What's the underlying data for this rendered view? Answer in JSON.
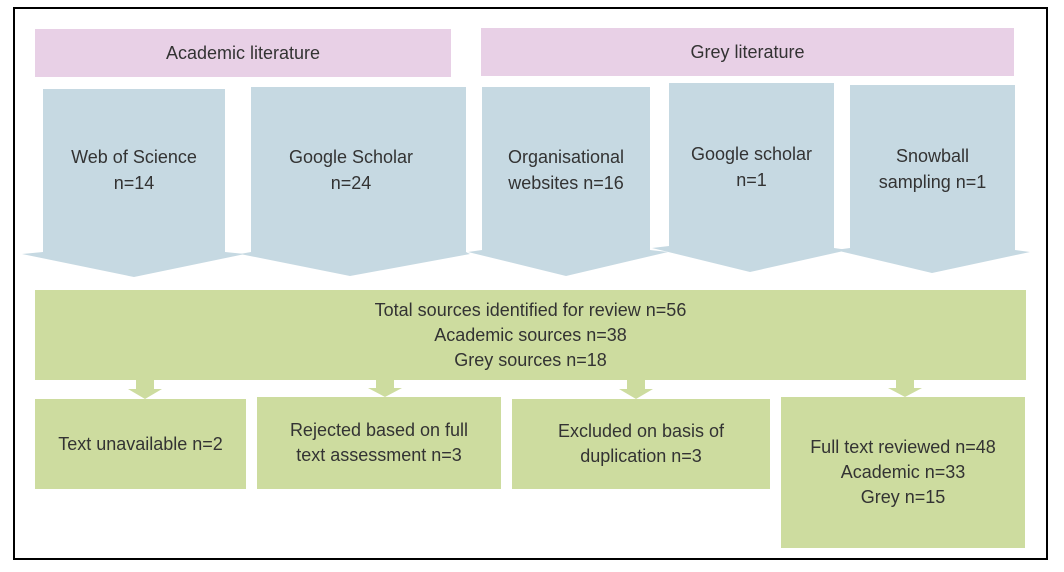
{
  "colors": {
    "header": "#e8d0e6",
    "source": "#c6d9e2",
    "process": "#cddc9f",
    "text": "#333333"
  },
  "headers": {
    "academic": "Academic literature",
    "grey": "Grey literature"
  },
  "sources": [
    {
      "lines": [
        "Web of Science",
        "n=14"
      ]
    },
    {
      "lines": [
        "Google Scholar",
        "n=24"
      ]
    },
    {
      "lines": [
        "Organisational",
        "websites n=16"
      ]
    },
    {
      "lines": [
        "Google scholar",
        "n=1"
      ]
    },
    {
      "lines": [
        "Snowball",
        "sampling n=1"
      ]
    }
  ],
  "total": {
    "lines": [
      "Total sources identified for review n=56",
      "Academic sources n=38",
      "Grey sources n=18"
    ]
  },
  "outcomes": [
    {
      "lines": [
        "Text unavailable n=2"
      ]
    },
    {
      "lines": [
        "Rejected based on full",
        "text assessment n=3"
      ]
    },
    {
      "lines": [
        "Excluded on basis of",
        "duplication n=3"
      ]
    },
    {
      "lines": [
        "Full text reviewed n=48",
        "Academic n=33",
        "Grey n=15"
      ]
    }
  ]
}
